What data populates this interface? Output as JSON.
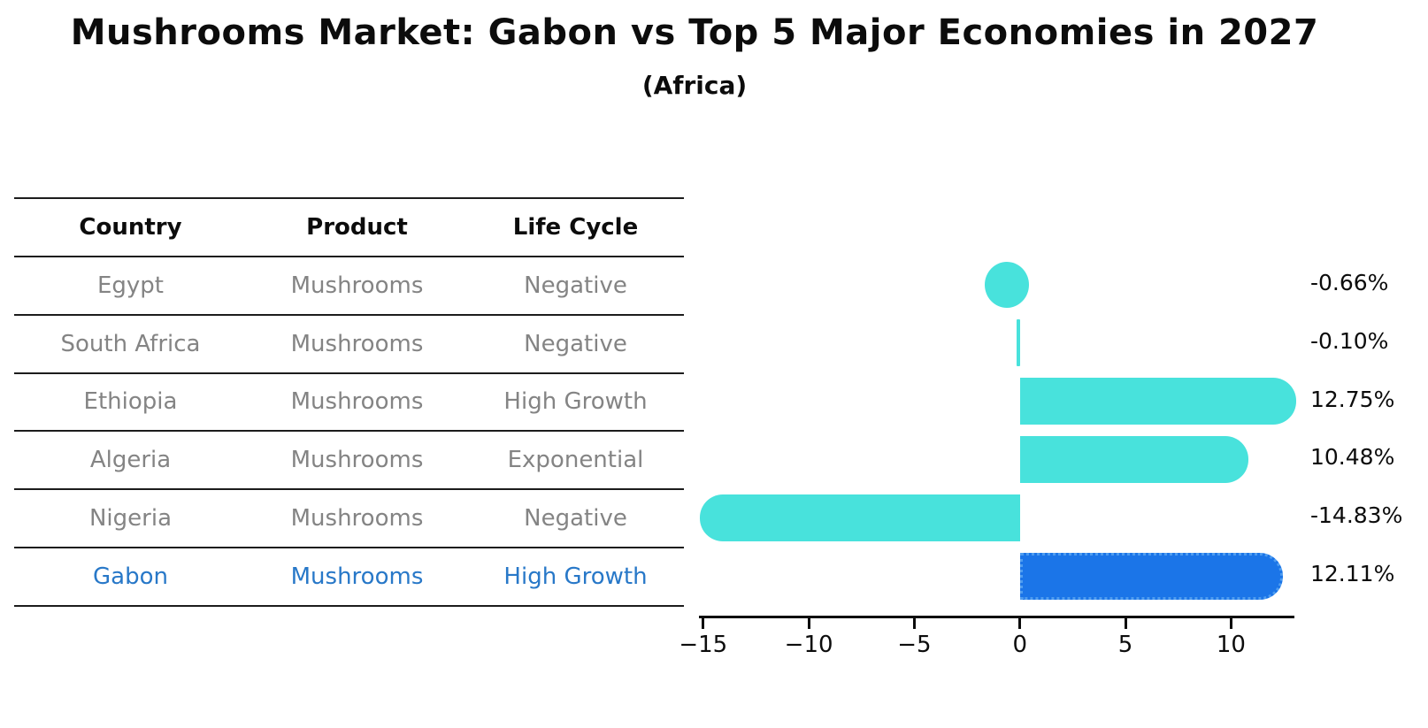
{
  "title": "Mushrooms Market: Gabon vs Top 5 Major Economies in 2027",
  "subtitle": "(Africa)",
  "table": {
    "headers": {
      "country": "Country",
      "product": "Product",
      "life_cycle": "Life Cycle"
    },
    "rows": [
      {
        "country": "Egypt",
        "product": "Mushrooms",
        "life_cycle": "Negative",
        "highlight": false
      },
      {
        "country": "South Africa",
        "product": "Mushrooms",
        "life_cycle": "Negative",
        "highlight": false
      },
      {
        "country": "Ethiopia",
        "product": "Mushrooms",
        "life_cycle": "High Growth",
        "highlight": false
      },
      {
        "country": "Algeria",
        "product": "Mushrooms",
        "life_cycle": "Exponential",
        "highlight": false
      },
      {
        "country": "Nigeria",
        "product": "Mushrooms",
        "life_cycle": "Negative",
        "highlight": false
      },
      {
        "country": "Gabon",
        "product": "Mushrooms",
        "life_cycle": "High Growth",
        "highlight": true
      }
    ]
  },
  "chart_data": {
    "type": "bar",
    "orientation": "horizontal",
    "title": "Mushrooms Market: Gabon vs Top 5 Major Economies in 2027 (Africa)",
    "categories": [
      "Egypt",
      "South Africa",
      "Ethiopia",
      "Algeria",
      "Nigeria",
      "Gabon"
    ],
    "values": [
      -0.66,
      -0.1,
      12.75,
      10.48,
      -14.83,
      12.11
    ],
    "value_labels": [
      "-0.66%",
      "-0.10%",
      "12.75%",
      "10.48%",
      "-14.83%",
      "12.11%"
    ],
    "xlabel": "",
    "ylabel": "",
    "xlim": [
      -15.2,
      13.0
    ],
    "xticks": [
      -15,
      -10,
      -5,
      0,
      5,
      10
    ],
    "xtick_labels": [
      "−15",
      "−10",
      "−5",
      "0",
      "5",
      "10"
    ],
    "grid": false,
    "legend": false,
    "bar_color": "#48e2dc",
    "highlight_color": "#1b75e8",
    "highlight_border_color": "#4f9df0",
    "highlight_index": 5
  },
  "colors": {
    "text_dark": "#0c0c0c",
    "text_gray": "#848484",
    "highlight_text": "#2878c8",
    "bar_cyan": "#48e2dc",
    "bar_blue": "#1b75e8"
  }
}
